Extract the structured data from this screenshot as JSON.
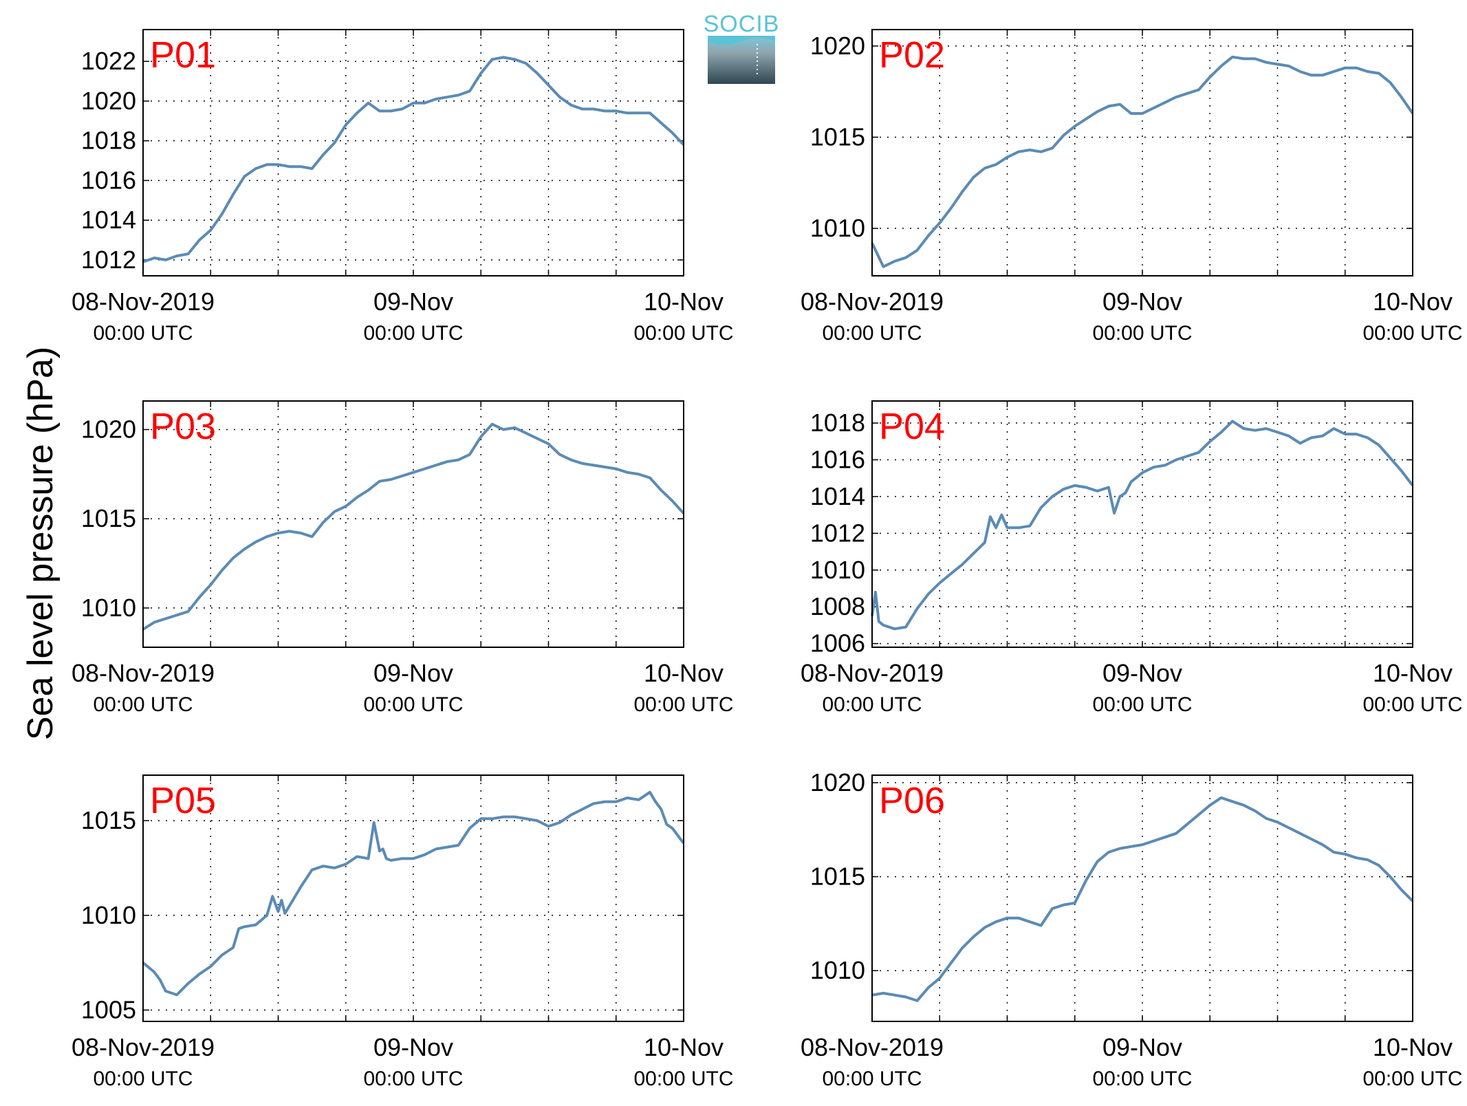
{
  "figure": {
    "ylabel": "Sea level pressure (hPa)",
    "logo_text": "SOCIB",
    "line_color": "#5b8bb5",
    "label_color": "#ff0000"
  },
  "chart_data": [
    {
      "type": "line",
      "title": "P01",
      "xlim": [
        0,
        48
      ],
      "ylim": [
        1011.2,
        1023.6
      ],
      "yticks": [
        1012,
        1014,
        1016,
        1018,
        1020,
        1022
      ],
      "xticks": [
        0,
        24,
        48
      ],
      "xtick_labels": [
        [
          "08-Nov-2019",
          "00:00 UTC"
        ],
        [
          "09-Nov",
          "00:00 UTC"
        ],
        [
          "10-Nov",
          "00:00 UTC"
        ]
      ],
      "grid": true,
      "series": [
        {
          "x": [
            0,
            1,
            2,
            3,
            4,
            5,
            6,
            7,
            8,
            9,
            10,
            11,
            12,
            13,
            14,
            15,
            16,
            17,
            18,
            19,
            20,
            21,
            22,
            23,
            24,
            25,
            26,
            27,
            28,
            29,
            30,
            31,
            32,
            33,
            34,
            35,
            36,
            37,
            38,
            39,
            40,
            41,
            42,
            43,
            44,
            45,
            46,
            47,
            48
          ],
          "y": [
            1011.9,
            1012.1,
            1012.0,
            1012.2,
            1012.3,
            1013.0,
            1013.5,
            1014.3,
            1015.3,
            1016.2,
            1016.6,
            1016.8,
            1016.8,
            1016.7,
            1016.7,
            1016.6,
            1017.3,
            1017.9,
            1018.8,
            1019.4,
            1019.9,
            1019.5,
            1019.5,
            1019.6,
            1019.9,
            1019.9,
            1020.1,
            1020.2,
            1020.3,
            1020.5,
            1021.4,
            1022.1,
            1022.2,
            1022.1,
            1021.9,
            1021.4,
            1020.8,
            1020.2,
            1019.8,
            1019.6,
            1019.6,
            1019.5,
            1019.5,
            1019.4,
            1019.4,
            1019.4,
            1018.9,
            1018.4,
            1017.8
          ]
        }
      ]
    },
    {
      "type": "line",
      "title": "P02",
      "xlim": [
        0,
        48
      ],
      "ylim": [
        1007.4,
        1020.9
      ],
      "yticks": [
        1010,
        1015,
        1020
      ],
      "xticks": [
        0,
        24,
        48
      ],
      "xtick_labels": [
        [
          "08-Nov-2019",
          "00:00 UTC"
        ],
        [
          "09-Nov",
          "00:00 UTC"
        ],
        [
          "10-Nov",
          "00:00 UTC"
        ]
      ],
      "grid": true,
      "series": [
        {
          "x": [
            0,
            1,
            2,
            3,
            4,
            5,
            6,
            7,
            8,
            9,
            10,
            11,
            12,
            13,
            14,
            15,
            16,
            17,
            18,
            19,
            20,
            21,
            22,
            23,
            24,
            25,
            26,
            27,
            28,
            29,
            30,
            31,
            32,
            33,
            34,
            35,
            36,
            37,
            38,
            39,
            40,
            41,
            42,
            43,
            44,
            45,
            46,
            47,
            48
          ],
          "y": [
            1009.2,
            1007.9,
            1008.2,
            1008.4,
            1008.8,
            1009.6,
            1010.3,
            1011.1,
            1012.0,
            1012.8,
            1013.3,
            1013.5,
            1013.9,
            1014.2,
            1014.3,
            1014.2,
            1014.4,
            1015.1,
            1015.6,
            1016.0,
            1016.4,
            1016.7,
            1016.8,
            1016.3,
            1016.3,
            1016.6,
            1016.9,
            1017.2,
            1017.4,
            1017.6,
            1018.3,
            1018.9,
            1019.4,
            1019.3,
            1019.3,
            1019.1,
            1019.0,
            1018.9,
            1018.6,
            1018.4,
            1018.4,
            1018.6,
            1018.8,
            1018.8,
            1018.6,
            1018.5,
            1018.0,
            1017.2,
            1016.3
          ]
        }
      ]
    },
    {
      "type": "line",
      "title": "P03",
      "xlim": [
        0,
        48
      ],
      "ylim": [
        1007.8,
        1021.6
      ],
      "yticks": [
        1010,
        1015,
        1020
      ],
      "xticks": [
        0,
        24,
        48
      ],
      "xtick_labels": [
        [
          "08-Nov-2019",
          "00:00 UTC"
        ],
        [
          "09-Nov",
          "00:00 UTC"
        ],
        [
          "10-Nov",
          "00:00 UTC"
        ]
      ],
      "grid": true,
      "series": [
        {
          "x": [
            0,
            1,
            2,
            3,
            4,
            5,
            6,
            7,
            8,
            9,
            10,
            11,
            12,
            13,
            14,
            15,
            16,
            17,
            18,
            19,
            20,
            21,
            22,
            23,
            24,
            25,
            26,
            27,
            28,
            29,
            30,
            31,
            32,
            33,
            34,
            35,
            36,
            37,
            38,
            39,
            40,
            41,
            42,
            43,
            44,
            45,
            46,
            47,
            48
          ],
          "y": [
            1008.8,
            1009.2,
            1009.4,
            1009.6,
            1009.8,
            1010.6,
            1011.3,
            1012.1,
            1012.8,
            1013.3,
            1013.7,
            1014.0,
            1014.2,
            1014.3,
            1014.2,
            1014.0,
            1014.8,
            1015.4,
            1015.7,
            1016.2,
            1016.6,
            1017.1,
            1017.2,
            1017.4,
            1017.6,
            1017.8,
            1018.0,
            1018.2,
            1018.3,
            1018.6,
            1019.6,
            1020.3,
            1020.0,
            1020.1,
            1019.8,
            1019.5,
            1019.2,
            1018.6,
            1018.3,
            1018.1,
            1018.0,
            1017.9,
            1017.8,
            1017.6,
            1017.5,
            1017.3,
            1016.6,
            1016.0,
            1015.3
          ]
        }
      ]
    },
    {
      "type": "line",
      "title": "P04",
      "xlim": [
        0,
        48
      ],
      "ylim": [
        1005.8,
        1019.2
      ],
      "yticks": [
        1006,
        1008,
        1010,
        1012,
        1014,
        1016,
        1018
      ],
      "xticks": [
        0,
        24,
        48
      ],
      "xtick_labels": [
        [
          "08-Nov-2019",
          "00:00 UTC"
        ],
        [
          "09-Nov",
          "00:00 UTC"
        ],
        [
          "10-Nov",
          "00:00 UTC"
        ]
      ],
      "grid": true,
      "series": [
        {
          "x": [
            0,
            0.3,
            0.6,
            1,
            2,
            3,
            4,
            5,
            6,
            7,
            8,
            9,
            10,
            10.5,
            11,
            11.5,
            12,
            12.5,
            13,
            14,
            15,
            16,
            17,
            18,
            19,
            20,
            21,
            21.5,
            22,
            22.5,
            23,
            24,
            25,
            26,
            27,
            28,
            29,
            30,
            31,
            32,
            33,
            34,
            35,
            36,
            37,
            38,
            39,
            40,
            41,
            42,
            43,
            44,
            45,
            46,
            47,
            48
          ],
          "y": [
            1007.5,
            1008.8,
            1007.2,
            1007.0,
            1006.8,
            1006.9,
            1007.9,
            1008.7,
            1009.3,
            1009.8,
            1010.3,
            1010.9,
            1011.5,
            1012.9,
            1012.3,
            1013.0,
            1012.3,
            1012.3,
            1012.3,
            1012.4,
            1013.4,
            1014.0,
            1014.4,
            1014.6,
            1014.5,
            1014.3,
            1014.5,
            1013.1,
            1014.0,
            1014.2,
            1014.8,
            1015.3,
            1015.6,
            1015.7,
            1016.0,
            1016.2,
            1016.4,
            1017.0,
            1017.5,
            1018.1,
            1017.7,
            1017.6,
            1017.7,
            1017.5,
            1017.3,
            1016.9,
            1017.2,
            1017.3,
            1017.7,
            1017.4,
            1017.4,
            1017.2,
            1016.8,
            1016.1,
            1015.4,
            1014.6
          ]
        }
      ]
    },
    {
      "type": "line",
      "title": "P05",
      "xlim": [
        0,
        48
      ],
      "ylim": [
        1004.4,
        1017.4
      ],
      "yticks": [
        1005,
        1010,
        1015
      ],
      "xticks": [
        0,
        24,
        48
      ],
      "xtick_labels": [
        [
          "08-Nov-2019",
          "00:00 UTC"
        ],
        [
          "09-Nov",
          "00:00 UTC"
        ],
        [
          "10-Nov",
          "00:00 UTC"
        ]
      ],
      "grid": true,
      "series": [
        {
          "x": [
            0,
            1,
            1.5,
            2,
            3,
            4,
            5,
            6,
            7,
            8,
            8.5,
            9,
            10,
            11,
            11.5,
            12,
            12.3,
            12.6,
            13,
            14,
            15,
            16,
            17,
            18,
            19,
            20,
            20.5,
            21,
            21.3,
            21.6,
            22,
            23,
            24,
            25,
            26,
            27,
            28,
            29,
            30,
            31,
            32,
            33,
            34,
            35,
            36,
            37,
            38,
            39,
            40,
            41,
            42,
            43,
            44,
            45,
            45.5,
            46,
            46.5,
            47,
            48
          ],
          "y": [
            1007.5,
            1007.0,
            1006.6,
            1006.0,
            1005.8,
            1006.4,
            1006.9,
            1007.3,
            1007.9,
            1008.3,
            1009.3,
            1009.4,
            1009.5,
            1010.0,
            1011.0,
            1010.2,
            1010.8,
            1010.1,
            1010.5,
            1011.5,
            1012.4,
            1012.6,
            1012.5,
            1012.7,
            1013.1,
            1013.0,
            1014.9,
            1013.4,
            1013.5,
            1013.0,
            1012.9,
            1013.0,
            1013.0,
            1013.2,
            1013.5,
            1013.6,
            1013.7,
            1014.6,
            1015.1,
            1015.1,
            1015.2,
            1015.2,
            1015.1,
            1015.0,
            1014.7,
            1014.9,
            1015.3,
            1015.6,
            1015.9,
            1016.0,
            1016.0,
            1016.2,
            1016.1,
            1016.5,
            1016.0,
            1015.6,
            1014.8,
            1014.6,
            1013.8
          ]
        }
      ]
    },
    {
      "type": "line",
      "title": "P06",
      "xlim": [
        0,
        48
      ],
      "ylim": [
        1007.3,
        1020.4
      ],
      "yticks": [
        1010,
        1015,
        1020
      ],
      "xticks": [
        0,
        24,
        48
      ],
      "xtick_labels": [
        [
          "08-Nov-2019",
          "00:00 UTC"
        ],
        [
          "09-Nov",
          "00:00 UTC"
        ],
        [
          "10-Nov",
          "00:00 UTC"
        ]
      ],
      "grid": true,
      "series": [
        {
          "x": [
            0,
            1,
            2,
            3,
            4,
            5,
            6,
            7,
            8,
            9,
            10,
            11,
            12,
            13,
            14,
            15,
            16,
            17,
            18,
            19,
            20,
            21,
            22,
            23,
            24,
            25,
            26,
            27,
            28,
            29,
            30,
            31,
            32,
            33,
            34,
            35,
            36,
            37,
            38,
            39,
            40,
            41,
            42,
            43,
            44,
            45,
            46,
            47,
            48
          ],
          "y": [
            1008.7,
            1008.8,
            1008.7,
            1008.6,
            1008.4,
            1009.1,
            1009.6,
            1010.4,
            1011.2,
            1011.8,
            1012.3,
            1012.6,
            1012.8,
            1012.8,
            1012.6,
            1012.4,
            1013.3,
            1013.5,
            1013.6,
            1014.8,
            1015.8,
            1016.3,
            1016.5,
            1016.6,
            1016.7,
            1016.9,
            1017.1,
            1017.3,
            1017.8,
            1018.3,
            1018.8,
            1019.2,
            1019.0,
            1018.8,
            1018.5,
            1018.1,
            1017.9,
            1017.6,
            1017.3,
            1017.0,
            1016.7,
            1016.3,
            1016.2,
            1016.0,
            1015.9,
            1015.6,
            1015.0,
            1014.3,
            1013.7
          ]
        }
      ]
    }
  ]
}
